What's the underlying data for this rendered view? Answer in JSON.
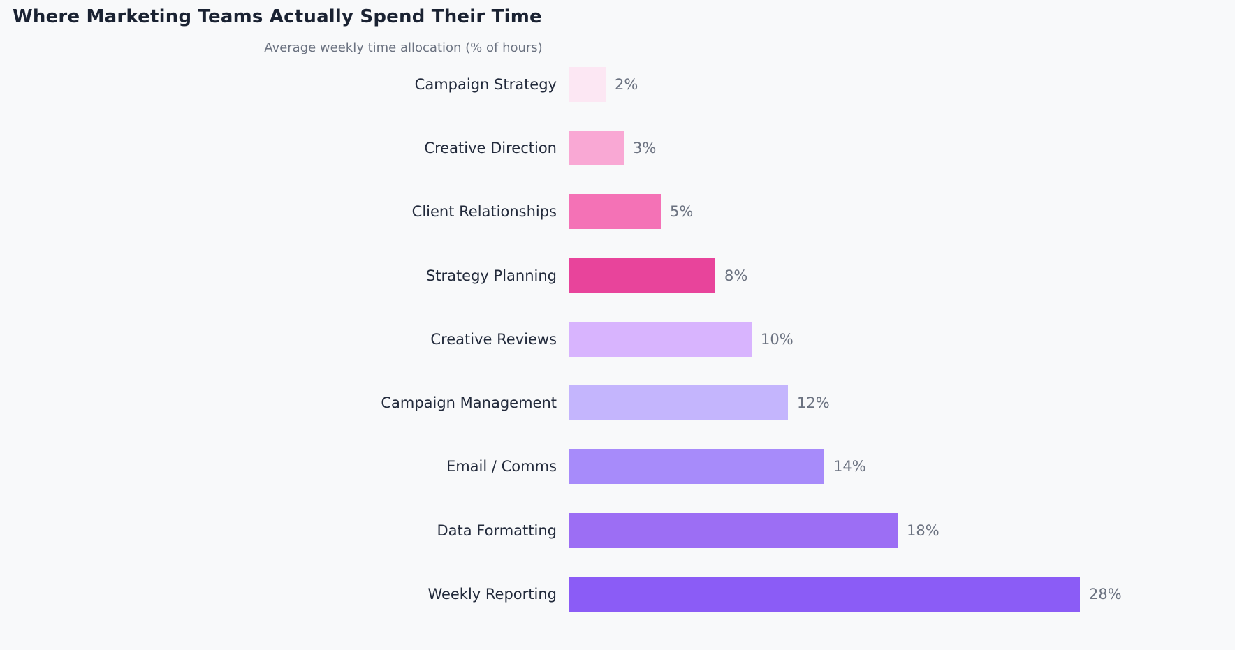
{
  "header": {
    "title": "Where Marketing Teams Actually Spend Their Time",
    "subtitle": "Average weekly time allocation (% of hours)"
  },
  "chart_data": {
    "type": "bar",
    "orientation": "horizontal",
    "title": "Where Marketing Teams Actually Spend Their Time",
    "subtitle": "Average weekly time allocation (% of hours)",
    "categories": [
      "Campaign Strategy",
      "Creative Direction",
      "Client Relationships",
      "Strategy Planning",
      "Creative Reviews",
      "Campaign Management",
      "Email / Comms",
      "Data Formatting",
      "Weekly Reporting"
    ],
    "values": [
      2,
      3,
      5,
      8,
      10,
      12,
      14,
      18,
      28
    ],
    "value_labels": [
      "2%",
      "3%",
      "5%",
      "8%",
      "10%",
      "12%",
      "14%",
      "18%",
      "28%"
    ],
    "colors": [
      "#fce7f3",
      "#f9a8d4",
      "#f472b6",
      "#e8449b",
      "#d8b4fe",
      "#c4b5fd",
      "#a78bfa",
      "#9c6ef4",
      "#8b5cf6"
    ],
    "xlim": [
      0,
      30
    ],
    "grid": false,
    "legend": "none",
    "axes_shown": false,
    "bar_labels_position": "right-of-bar",
    "category_labels_position": "left-of-bar",
    "background_color": "#f8f9fa",
    "title_color": "#1a2232",
    "category_label_color": "#222a3b",
    "value_label_color": "#6b7280",
    "subtitle_color": "#6b7280"
  }
}
